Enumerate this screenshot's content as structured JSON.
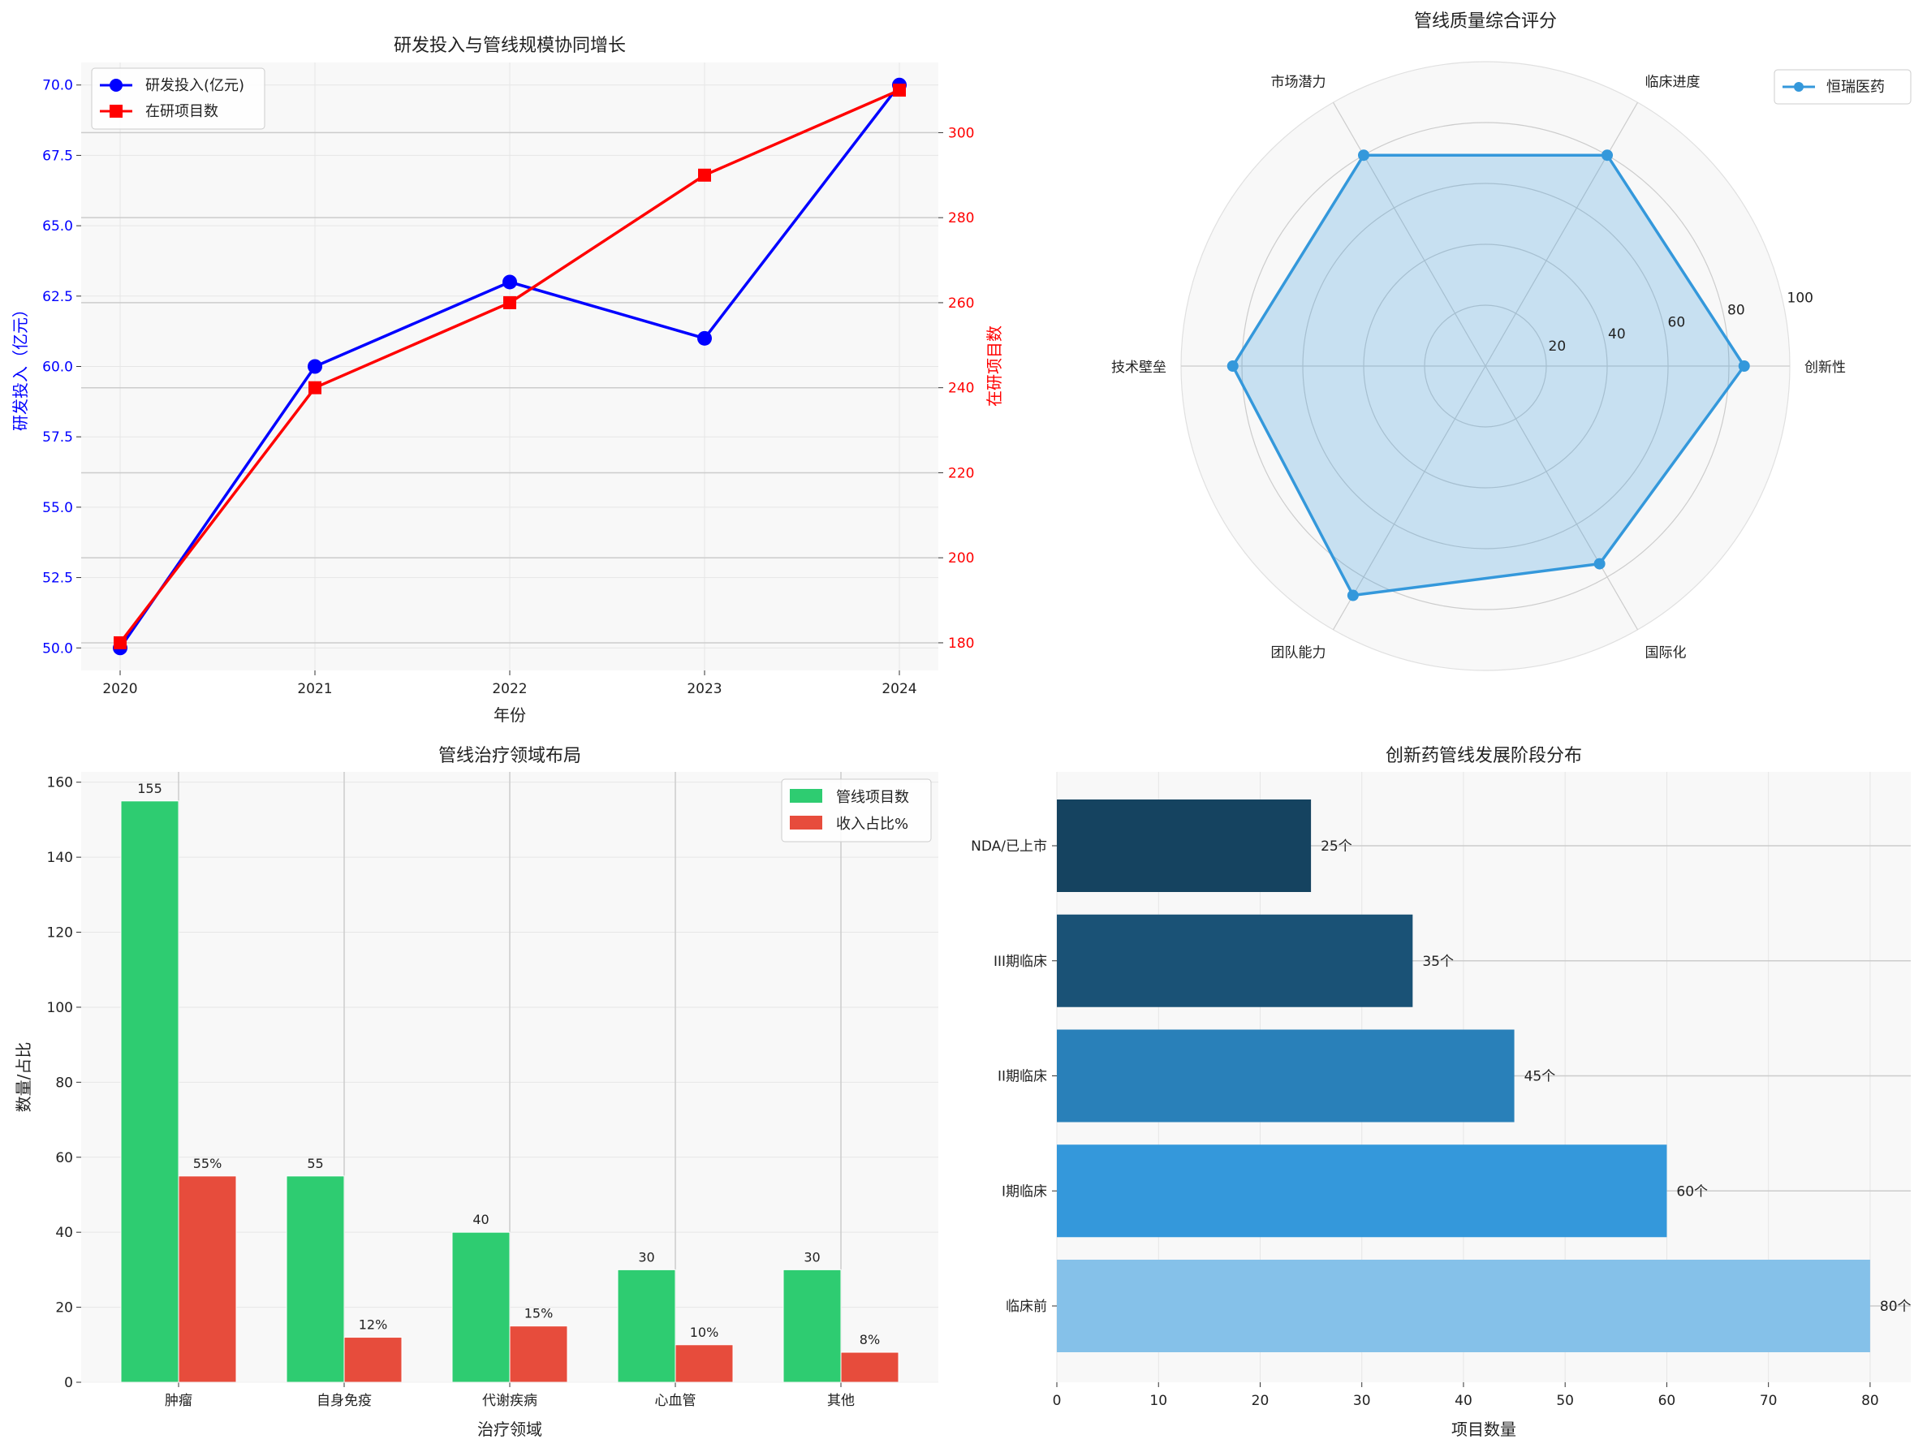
{
  "chart_data": [
    {
      "type": "line",
      "title": "研发投入与管线规模协同增长",
      "xlabel": "年份",
      "ylabel_left": "研发投入（亿元）",
      "ylabel_right": "在研项目数",
      "x": [
        2020,
        2021,
        2022,
        2023,
        2024
      ],
      "x_ticks": [
        "2020",
        "2021",
        "2022",
        "2023",
        "2024"
      ],
      "ylim_left": [
        49.2,
        70.8
      ],
      "yticks_left": [
        50.0,
        52.5,
        55.0,
        57.5,
        60.0,
        62.5,
        65.0,
        67.5,
        70.0
      ],
      "ylim_right": [
        173.5,
        316.5
      ],
      "yticks_right": [
        180,
        200,
        220,
        240,
        260,
        280,
        300
      ],
      "grid": true,
      "legend": "top-left",
      "series": [
        {
          "name": "研发投入(亿元)",
          "axis": "left",
          "color": "#0000ff",
          "marker": "circle",
          "values": [
            50,
            60,
            63,
            61,
            70
          ]
        },
        {
          "name": "在研项目数",
          "axis": "right",
          "color": "#ff0000",
          "marker": "square",
          "values": [
            180,
            240,
            260,
            290,
            310
          ]
        }
      ]
    },
    {
      "type": "radar",
      "title": "管线质量综合评分",
      "categories": [
        "创新性",
        "临床进度",
        "市场潜力",
        "技术壁垒",
        "团队能力",
        "国际化"
      ],
      "rmax": 100,
      "rticks": [
        20,
        40,
        60,
        80,
        100
      ],
      "legend": "top-right",
      "series": [
        {
          "name": "恒瑞医药",
          "color": "#3498db",
          "values": [
            85,
            80,
            80,
            83,
            87,
            75
          ]
        }
      ]
    },
    {
      "type": "bar",
      "title": "管线治疗领域布局",
      "xlabel": "治疗领域",
      "ylabel": "数量/占比",
      "categories": [
        "肿瘤",
        "自身免疫",
        "代谢疾病",
        "心血管",
        "其他"
      ],
      "ylim": [
        0,
        162.75
      ],
      "yticks": [
        0,
        20,
        40,
        60,
        80,
        100,
        120,
        140,
        160
      ],
      "legend": "top-right",
      "series": [
        {
          "name": "管线项目数",
          "color": "#2ecc71",
          "values": [
            155,
            55,
            40,
            30,
            30
          ],
          "labels": [
            "155",
            "55",
            "40",
            "30",
            "30"
          ]
        },
        {
          "name": "收入占比%",
          "color": "#e74c3c",
          "values": [
            55,
            12,
            15,
            10,
            8
          ],
          "labels": [
            "55%",
            "12%",
            "15%",
            "10%",
            "8%"
          ]
        }
      ]
    },
    {
      "type": "barh",
      "title": "创新药管线发展阶段分布",
      "xlabel": "项目数量",
      "categories": [
        "NDA/已上市",
        "III期临床",
        "II期临床",
        "I期临床",
        "临床前"
      ],
      "values": [
        25,
        35,
        45,
        60,
        80
      ],
      "labels": [
        "25个",
        "35个",
        "45个",
        "60个",
        "80个"
      ],
      "colors": [
        "#154360",
        "#1a5276",
        "#2980b9",
        "#3498db",
        "#85c1e9"
      ],
      "xlim": [
        0,
        84
      ],
      "xticks": [
        0,
        10,
        20,
        30,
        40,
        50,
        60,
        70,
        80
      ]
    }
  ]
}
